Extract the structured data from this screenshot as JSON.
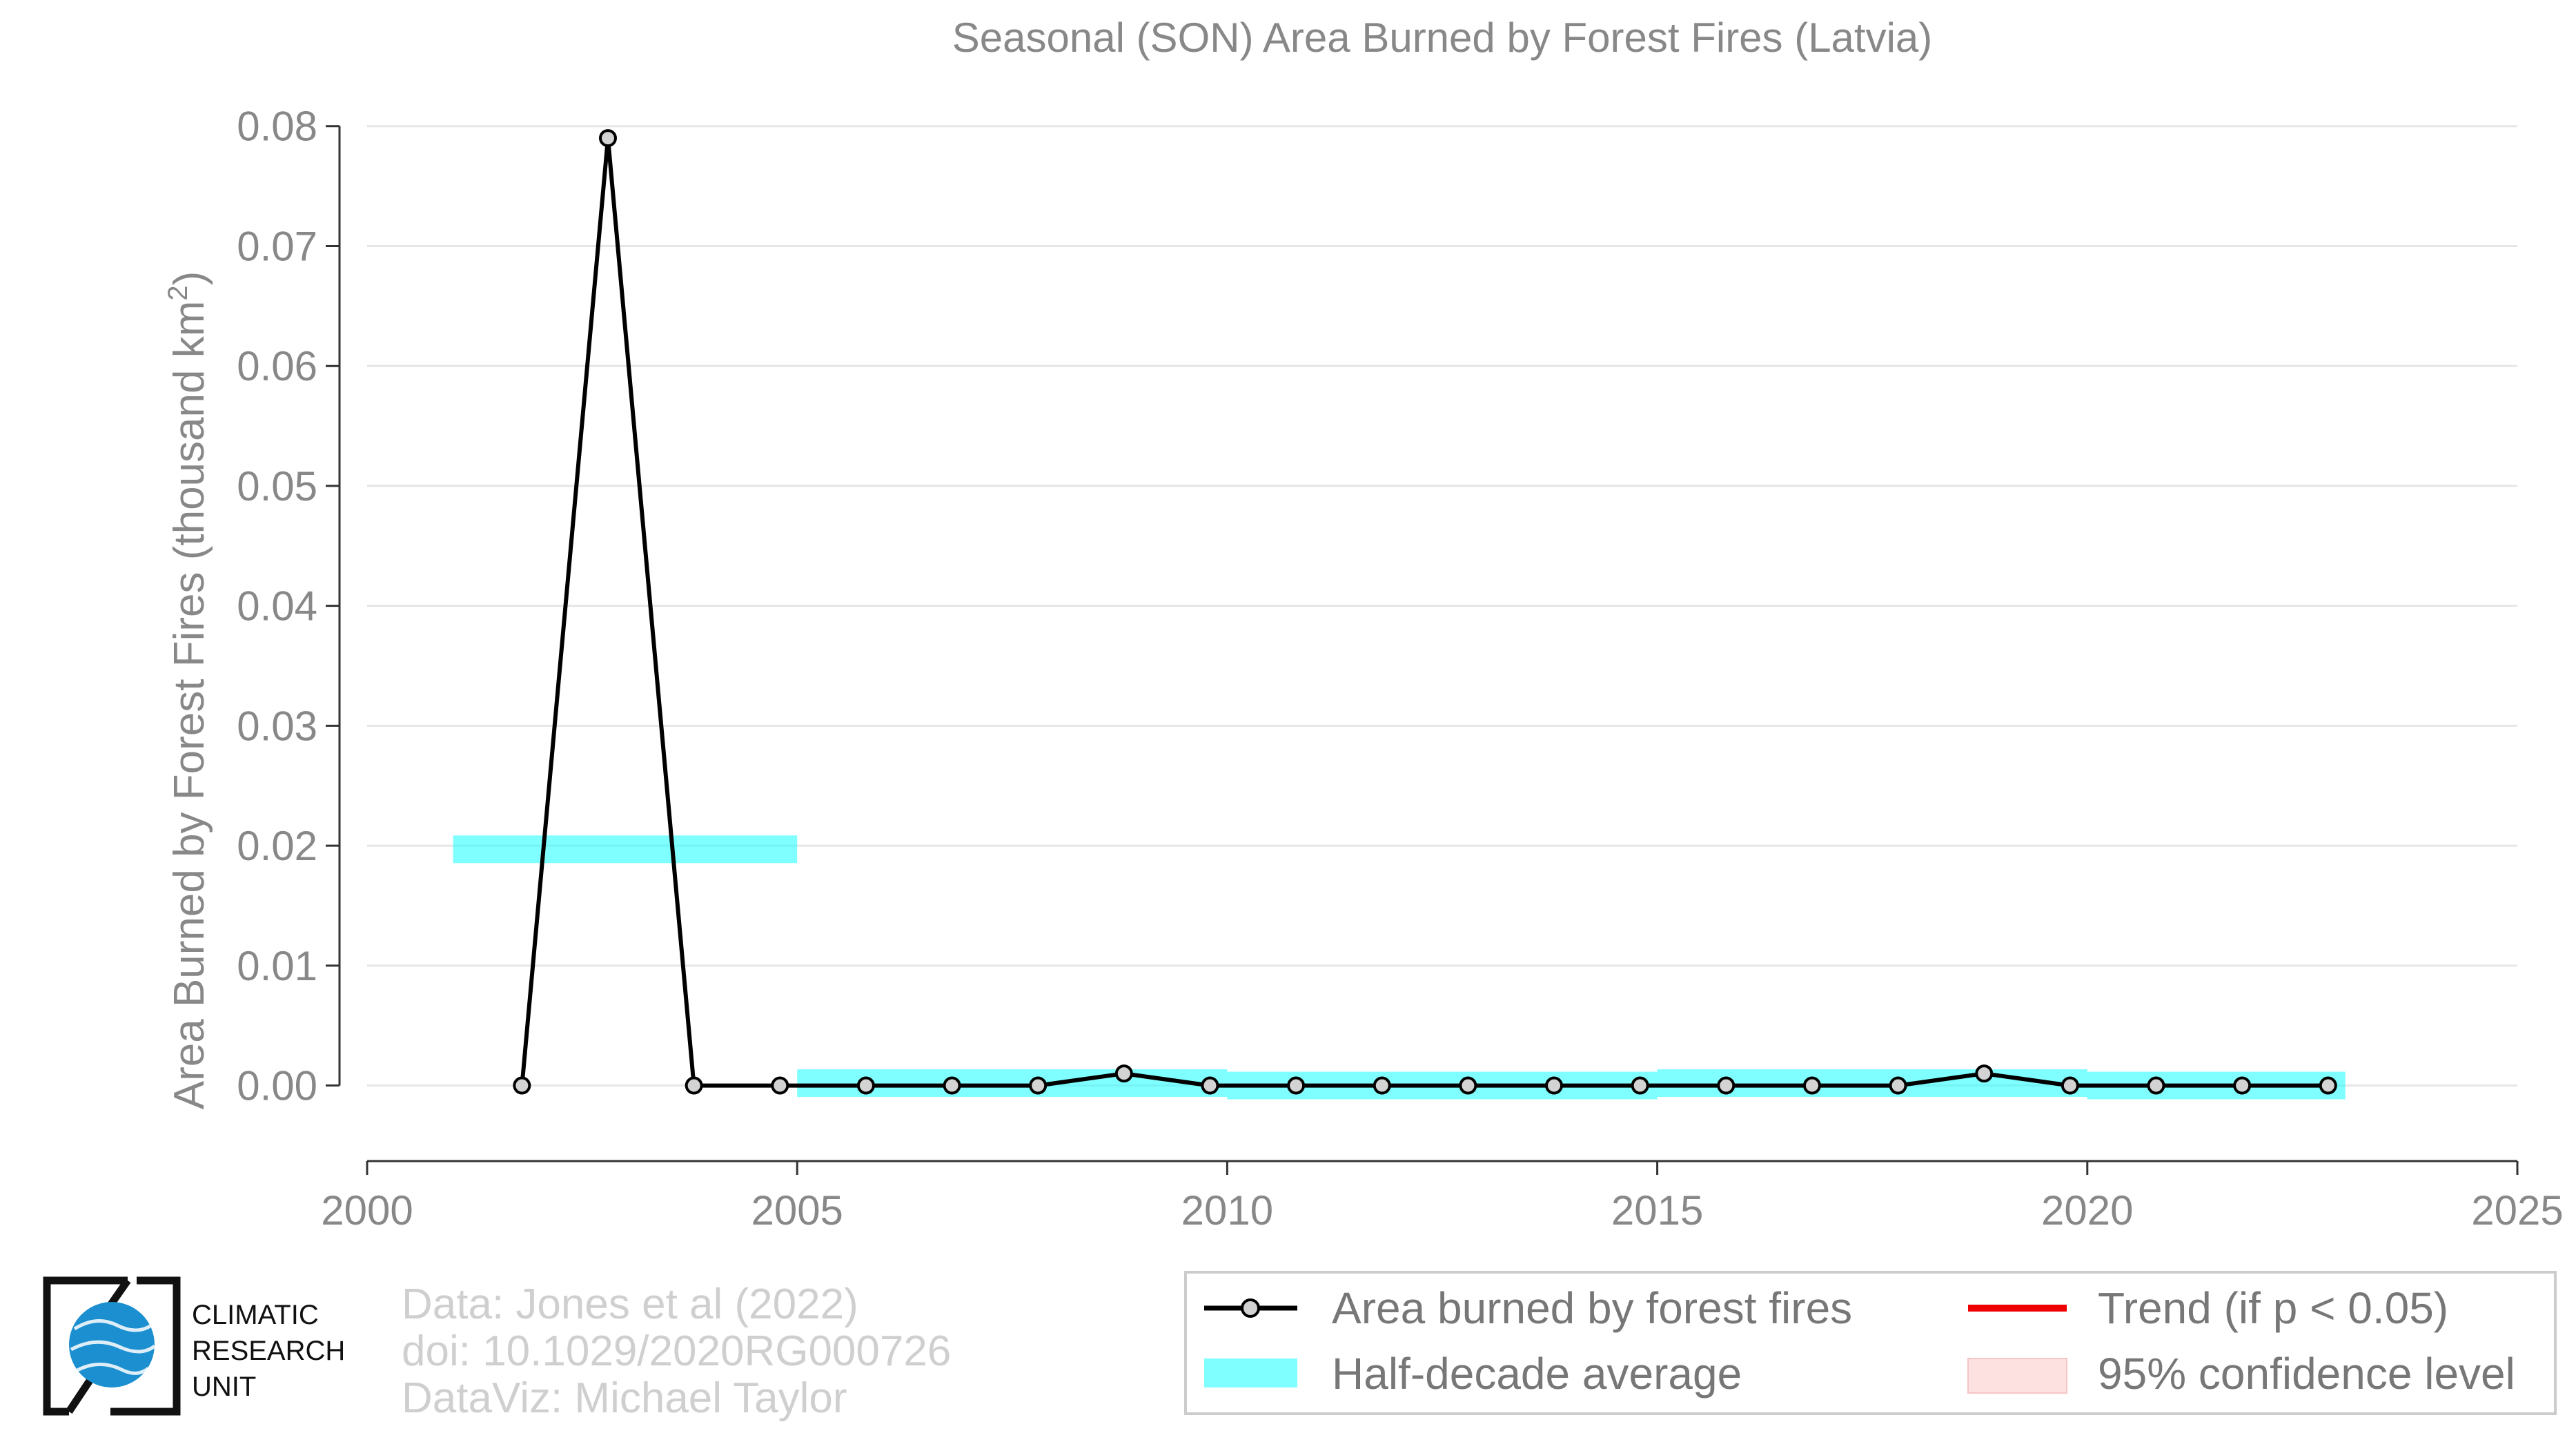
{
  "chart_data": {
    "type": "line",
    "title": "Seasonal (SON) Area Burned by Forest Fires (Latvia)",
    "ylabel": "Area Burned by Forest Fires (thousand km",
    "ylabel_superscript": "2",
    "ylabel_close": ")",
    "xlabel": "",
    "xlim": [
      2000,
      2025
    ],
    "ylim": [
      -0.0063,
      0.082
    ],
    "xticks": [
      2000,
      2005,
      2010,
      2015,
      2020,
      2025
    ],
    "yticks": [
      0.0,
      0.01,
      0.02,
      0.03,
      0.04,
      0.05,
      0.06,
      0.07,
      0.08
    ],
    "ytick_labels": [
      "0.00",
      "0.01",
      "0.02",
      "0.03",
      "0.04",
      "0.05",
      "0.06",
      "0.07",
      "0.08"
    ],
    "grid": "horizontal",
    "series": [
      {
        "name": "Area burned by forest fires",
        "color": "#000000",
        "marker_fill": "#d3d3d3",
        "x": [
          2001.8,
          2002.8,
          2003.8,
          2004.8,
          2005.8,
          2006.8,
          2007.8,
          2008.8,
          2009.8,
          2010.8,
          2011.8,
          2012.8,
          2013.8,
          2014.8,
          2015.8,
          2016.8,
          2017.8,
          2018.8,
          2019.8,
          2020.8,
          2021.8,
          2022.8
        ],
        "values": [
          0.0,
          0.079,
          0.0,
          0.0,
          0.0,
          0.0,
          0.0,
          0.001,
          0.0,
          0.0,
          0.0,
          0.0,
          0.0,
          0.0,
          0.0,
          0.0,
          0.0,
          0.001,
          0.0,
          0.0,
          0.0,
          0.0
        ]
      }
    ],
    "half_decade_average": {
      "name": "Half-decade average",
      "color": "#00ffff",
      "segments": [
        {
          "x_start": 2001,
          "x_end": 2005,
          "value": 0.0197
        },
        {
          "x_start": 2005,
          "x_end": 2010,
          "value": 0.0002
        },
        {
          "x_start": 2010,
          "x_end": 2015,
          "value": 0.0
        },
        {
          "x_start": 2015,
          "x_end": 2020,
          "value": 0.0002
        },
        {
          "x_start": 2020,
          "x_end": 2023,
          "value": 0.0
        }
      ]
    },
    "legend_placement": "bottom-right",
    "legend": [
      {
        "key": "series",
        "label": "Area burned by forest fires"
      },
      {
        "key": "trend",
        "label": "Trend (if p < 0.05)",
        "color": "#ee0000"
      },
      {
        "key": "avg",
        "label": "Half-decade average"
      },
      {
        "key": "ci",
        "label": "95% confidence level",
        "color": "#fde0e0"
      }
    ]
  },
  "credits": {
    "line1": "Data: Jones et al (2022)",
    "line2": "doi: 10.1029/2020RG000726",
    "line3": "DataViz: Michael Taylor"
  },
  "logo": {
    "line1": "CLIMATIC",
    "line2": "RESEARCH",
    "line3": "UNIT",
    "globe_color": "#1b8fd0"
  }
}
